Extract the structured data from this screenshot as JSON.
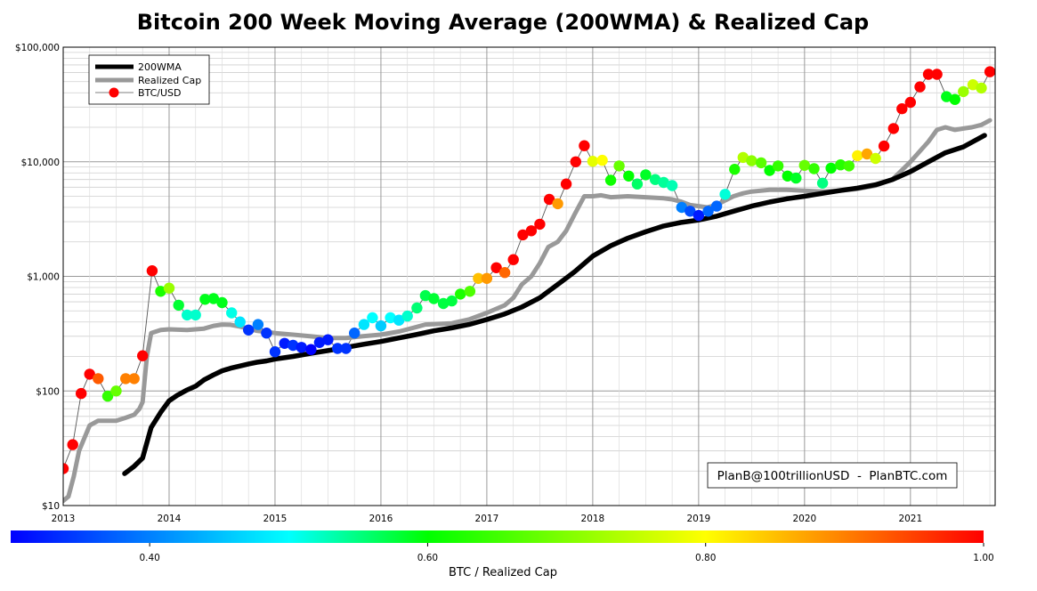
{
  "chart_data": {
    "type": "line",
    "title": "Bitcoin 200 Week Moving Average (200WMA) & Realized Cap",
    "y_scale": "log",
    "ylim": [
      10,
      100000
    ],
    "xlim": [
      2013.0,
      2021.8
    ],
    "y_ticks": [
      {
        "value": 10,
        "label": "$10"
      },
      {
        "value": 100,
        "label": "$100"
      },
      {
        "value": 1000,
        "label": "$1,000"
      },
      {
        "value": 10000,
        "label": "$10,000"
      },
      {
        "value": 100000,
        "label": "$100,000"
      }
    ],
    "x_ticks": [
      {
        "value": 2013,
        "label": "2013"
      },
      {
        "value": 2014,
        "label": "2014"
      },
      {
        "value": 2015,
        "label": "2015"
      },
      {
        "value": 2016,
        "label": "2016"
      },
      {
        "value": 2017,
        "label": "2017"
      },
      {
        "value": 2018,
        "label": "2018"
      },
      {
        "value": 2019,
        "label": "2019"
      },
      {
        "value": 2020,
        "label": "2020"
      },
      {
        "value": 2021,
        "label": "2021"
      }
    ],
    "legend": [
      {
        "label": "200WMA",
        "style": "thick-black"
      },
      {
        "label": "Realized Cap",
        "style": "thick-gray"
      },
      {
        "label": "BTC/USD",
        "style": "red-dot"
      }
    ],
    "series": [
      {
        "name": "200WMA",
        "color": "#000000",
        "points": [
          [
            2013.58,
            19
          ],
          [
            2013.67,
            22
          ],
          [
            2013.75,
            26
          ],
          [
            2013.83,
            48
          ],
          [
            2013.92,
            65
          ],
          [
            2014.0,
            82
          ],
          [
            2014.08,
            92
          ],
          [
            2014.17,
            102
          ],
          [
            2014.25,
            110
          ],
          [
            2014.33,
            125
          ],
          [
            2014.42,
            138
          ],
          [
            2014.5,
            150
          ],
          [
            2014.58,
            158
          ],
          [
            2014.67,
            165
          ],
          [
            2014.75,
            172
          ],
          [
            2014.83,
            178
          ],
          [
            2014.92,
            183
          ],
          [
            2015.0,
            190
          ],
          [
            2015.17,
            200
          ],
          [
            2015.33,
            212
          ],
          [
            2015.5,
            225
          ],
          [
            2015.67,
            240
          ],
          [
            2015.83,
            255
          ],
          [
            2016.0,
            270
          ],
          [
            2016.17,
            290
          ],
          [
            2016.33,
            310
          ],
          [
            2016.5,
            335
          ],
          [
            2016.67,
            355
          ],
          [
            2016.83,
            380
          ],
          [
            2017.0,
            420
          ],
          [
            2017.17,
            470
          ],
          [
            2017.33,
            540
          ],
          [
            2017.5,
            650
          ],
          [
            2017.67,
            850
          ],
          [
            2017.83,
            1100
          ],
          [
            2018.0,
            1500
          ],
          [
            2018.17,
            1850
          ],
          [
            2018.33,
            2150
          ],
          [
            2018.5,
            2450
          ],
          [
            2018.67,
            2750
          ],
          [
            2018.83,
            2950
          ],
          [
            2019.0,
            3100
          ],
          [
            2019.17,
            3350
          ],
          [
            2019.33,
            3700
          ],
          [
            2019.5,
            4100
          ],
          [
            2019.67,
            4450
          ],
          [
            2019.83,
            4750
          ],
          [
            2020.0,
            5000
          ],
          [
            2020.17,
            5300
          ],
          [
            2020.33,
            5600
          ],
          [
            2020.5,
            5900
          ],
          [
            2020.67,
            6300
          ],
          [
            2020.83,
            7000
          ],
          [
            2021.0,
            8200
          ],
          [
            2021.17,
            10000
          ],
          [
            2021.33,
            12000
          ],
          [
            2021.5,
            13500
          ],
          [
            2021.7,
            17000
          ]
        ]
      },
      {
        "name": "Realized Cap",
        "color": "#999999",
        "points": [
          [
            2013.0,
            11
          ],
          [
            2013.05,
            12
          ],
          [
            2013.1,
            18
          ],
          [
            2013.15,
            30
          ],
          [
            2013.25,
            50
          ],
          [
            2013.33,
            55
          ],
          [
            2013.42,
            55
          ],
          [
            2013.5,
            55
          ],
          [
            2013.58,
            58
          ],
          [
            2013.67,
            62
          ],
          [
            2013.72,
            70
          ],
          [
            2013.75,
            80
          ],
          [
            2013.79,
            200
          ],
          [
            2013.83,
            320
          ],
          [
            2013.92,
            340
          ],
          [
            2014.0,
            345
          ],
          [
            2014.17,
            340
          ],
          [
            2014.33,
            350
          ],
          [
            2014.42,
            370
          ],
          [
            2014.5,
            380
          ],
          [
            2014.58,
            378
          ],
          [
            2014.67,
            365
          ],
          [
            2014.75,
            350
          ],
          [
            2014.83,
            335
          ],
          [
            2015.0,
            320
          ],
          [
            2015.17,
            310
          ],
          [
            2015.33,
            300
          ],
          [
            2015.5,
            290
          ],
          [
            2015.67,
            290
          ],
          [
            2015.83,
            300
          ],
          [
            2016.0,
            310
          ],
          [
            2016.17,
            330
          ],
          [
            2016.33,
            360
          ],
          [
            2016.42,
            380
          ],
          [
            2016.67,
            390
          ],
          [
            2016.83,
            420
          ],
          [
            2017.0,
            480
          ],
          [
            2017.17,
            560
          ],
          [
            2017.25,
            650
          ],
          [
            2017.33,
            850
          ],
          [
            2017.42,
            1000
          ],
          [
            2017.5,
            1300
          ],
          [
            2017.58,
            1800
          ],
          [
            2017.67,
            2000
          ],
          [
            2017.75,
            2500
          ],
          [
            2017.83,
            3500
          ],
          [
            2017.92,
            5000
          ],
          [
            2018.0,
            5000
          ],
          [
            2018.08,
            5100
          ],
          [
            2018.17,
            4900
          ],
          [
            2018.33,
            5000
          ],
          [
            2018.5,
            4900
          ],
          [
            2018.67,
            4800
          ],
          [
            2018.75,
            4700
          ],
          [
            2018.83,
            4500
          ],
          [
            2018.92,
            4200
          ],
          [
            2019.0,
            4100
          ],
          [
            2019.08,
            4000
          ],
          [
            2019.17,
            4200
          ],
          [
            2019.25,
            4600
          ],
          [
            2019.33,
            5000
          ],
          [
            2019.42,
            5300
          ],
          [
            2019.5,
            5500
          ],
          [
            2019.67,
            5700
          ],
          [
            2019.83,
            5700
          ],
          [
            2020.0,
            5600
          ],
          [
            2020.17,
            5500
          ],
          [
            2020.33,
            5600
          ],
          [
            2020.5,
            5800
          ],
          [
            2020.67,
            6200
          ],
          [
            2020.83,
            7000
          ],
          [
            2021.0,
            10000
          ],
          [
            2021.17,
            15000
          ],
          [
            2021.25,
            19000
          ],
          [
            2021.33,
            20000
          ],
          [
            2021.42,
            19000
          ],
          [
            2021.5,
            19500
          ],
          [
            2021.58,
            20000
          ],
          [
            2021.67,
            21000
          ],
          [
            2021.75,
            23000
          ]
        ]
      },
      {
        "name": "BTC/USD",
        "color": "#555555",
        "points": [
          [
            2013.0,
            21,
            1.0
          ],
          [
            2013.09,
            34,
            1.0
          ],
          [
            2013.17,
            95,
            1.0
          ],
          [
            2013.25,
            140,
            1.0
          ],
          [
            2013.33,
            128,
            0.93
          ],
          [
            2013.42,
            90,
            0.64
          ],
          [
            2013.5,
            100,
            0.68
          ],
          [
            2013.59,
            128,
            0.9
          ],
          [
            2013.67,
            128,
            0.9
          ],
          [
            2013.75,
            203,
            1.0
          ],
          [
            2013.84,
            1120,
            1.0
          ],
          [
            2013.92,
            740,
            0.62
          ],
          [
            2014.0,
            790,
            0.72
          ],
          [
            2014.09,
            560,
            0.56
          ],
          [
            2014.17,
            460,
            0.44
          ],
          [
            2014.25,
            460,
            0.44
          ],
          [
            2014.34,
            630,
            0.58
          ],
          [
            2014.42,
            640,
            0.58
          ],
          [
            2014.5,
            590,
            0.58
          ],
          [
            2014.59,
            480,
            0.42
          ],
          [
            2014.67,
            400,
            0.39
          ],
          [
            2014.75,
            340,
            0.32
          ],
          [
            2014.84,
            380,
            0.35
          ],
          [
            2014.92,
            320,
            0.32
          ],
          [
            2015.0,
            220,
            0.32
          ],
          [
            2015.09,
            260,
            0.31
          ],
          [
            2015.17,
            250,
            0.32
          ],
          [
            2015.25,
            240,
            0.31
          ],
          [
            2015.34,
            230,
            0.3
          ],
          [
            2015.42,
            265,
            0.31
          ],
          [
            2015.5,
            280,
            0.31
          ],
          [
            2015.59,
            235,
            0.32
          ],
          [
            2015.67,
            235,
            0.32
          ],
          [
            2015.75,
            320,
            0.34
          ],
          [
            2015.84,
            380,
            0.39
          ],
          [
            2015.92,
            435,
            0.4
          ],
          [
            2016.0,
            370,
            0.38
          ],
          [
            2016.09,
            435,
            0.4
          ],
          [
            2016.17,
            415,
            0.39
          ],
          [
            2016.25,
            450,
            0.44
          ],
          [
            2016.34,
            530,
            0.51
          ],
          [
            2016.42,
            680,
            0.54
          ],
          [
            2016.5,
            640,
            0.56
          ],
          [
            2016.59,
            580,
            0.55
          ],
          [
            2016.67,
            610,
            0.55
          ],
          [
            2016.75,
            700,
            0.62
          ],
          [
            2016.84,
            740,
            0.66
          ],
          [
            2016.92,
            960,
            0.85
          ],
          [
            2017.0,
            960,
            0.88
          ],
          [
            2017.09,
            1190,
            1.0
          ],
          [
            2017.17,
            1080,
            0.92
          ],
          [
            2017.25,
            1400,
            1.0
          ],
          [
            2017.34,
            2300,
            1.0
          ],
          [
            2017.42,
            2500,
            1.0
          ],
          [
            2017.5,
            2850,
            1.0
          ],
          [
            2017.59,
            4700,
            1.0
          ],
          [
            2017.67,
            4300,
            0.88
          ],
          [
            2017.75,
            6400,
            1.0
          ],
          [
            2017.84,
            10000,
            1.0
          ],
          [
            2017.92,
            13800,
            1.0
          ],
          [
            2018.0,
            10100,
            0.78
          ],
          [
            2018.09,
            10300,
            0.8
          ],
          [
            2018.17,
            6900,
            0.61
          ],
          [
            2018.25,
            9200,
            0.68
          ],
          [
            2018.34,
            7500,
            0.6
          ],
          [
            2018.42,
            6400,
            0.52
          ],
          [
            2018.5,
            7700,
            0.57
          ],
          [
            2018.59,
            7000,
            0.5
          ],
          [
            2018.67,
            6600,
            0.48
          ],
          [
            2018.75,
            6200,
            0.46
          ],
          [
            2018.84,
            4000,
            0.35
          ],
          [
            2018.92,
            3700,
            0.33
          ],
          [
            2019.0,
            3400,
            0.31
          ],
          [
            2019.09,
            3700,
            0.34
          ],
          [
            2019.17,
            4100,
            0.34
          ],
          [
            2019.25,
            5200,
            0.43
          ],
          [
            2019.34,
            8600,
            0.62
          ],
          [
            2019.42,
            10900,
            0.74
          ],
          [
            2019.5,
            10200,
            0.71
          ],
          [
            2019.59,
            9800,
            0.67
          ],
          [
            2019.67,
            8400,
            0.6
          ],
          [
            2019.75,
            9200,
            0.64
          ],
          [
            2019.84,
            7500,
            0.6
          ],
          [
            2019.92,
            7200,
            0.57
          ],
          [
            2020.0,
            9300,
            0.68
          ],
          [
            2020.09,
            8700,
            0.64
          ],
          [
            2020.17,
            6500,
            0.5
          ],
          [
            2020.25,
            8800,
            0.6
          ],
          [
            2020.34,
            9400,
            0.63
          ],
          [
            2020.42,
            9200,
            0.65
          ],
          [
            2020.5,
            11300,
            0.81
          ],
          [
            2020.59,
            11700,
            0.87
          ],
          [
            2020.67,
            10700,
            0.76
          ],
          [
            2020.75,
            13700,
            1.0
          ],
          [
            2020.84,
            19500,
            1.0
          ],
          [
            2020.92,
            29000,
            1.0
          ],
          [
            2021.0,
            33000,
            1.0
          ],
          [
            2021.09,
            45000,
            1.0
          ],
          [
            2021.17,
            58000,
            1.0
          ],
          [
            2021.25,
            58000,
            1.0
          ],
          [
            2021.34,
            37000,
            0.58
          ],
          [
            2021.42,
            35000,
            0.6
          ],
          [
            2021.5,
            41000,
            0.72
          ],
          [
            2021.59,
            47000,
            0.76
          ],
          [
            2021.67,
            44000,
            0.74
          ],
          [
            2021.75,
            61000,
            1.0
          ]
        ]
      }
    ],
    "colorbar": {
      "label": "BTC / Realized Cap",
      "range": [
        0.3,
        1.0
      ],
      "ticks": [
        {
          "value": 0.4,
          "label": "0.40"
        },
        {
          "value": 0.6,
          "label": "0.60"
        },
        {
          "value": 0.8,
          "label": "0.80"
        },
        {
          "value": 1.0,
          "label": "1.00"
        }
      ]
    },
    "annotation": "PlanB@100trillionUSD  -  PlanBTC.com"
  }
}
